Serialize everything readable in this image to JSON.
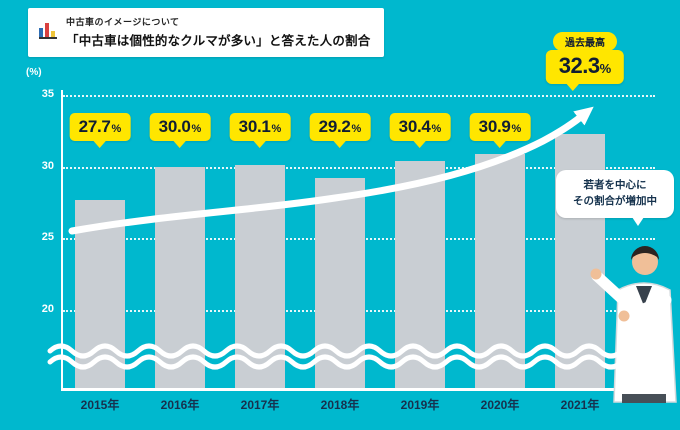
{
  "header": {
    "kicker": "中古車のイメージについて",
    "title": "「中古車は個性的なクルマが多い」と答えた人の割合"
  },
  "chart_data": {
    "type": "bar",
    "title": "「中古車は個性的なクルマが多い」と答えた人の割合",
    "categories": [
      "2015年",
      "2016年",
      "2017年",
      "2018年",
      "2019年",
      "2020年",
      "2021年"
    ],
    "values": [
      27.7,
      30.0,
      30.1,
      29.2,
      30.4,
      30.9,
      32.3
    ],
    "value_labels": [
      "27.7%",
      "30.0%",
      "30.1%",
      "29.2%",
      "30.4%",
      "30.9%",
      "32.3%"
    ],
    "unit_label": "(%)",
    "ylabel": "(%)",
    "xlabel": "",
    "y_ticks": [
      35,
      30,
      25,
      20
    ],
    "ylim_display": [
      20,
      35
    ],
    "axis_break": true,
    "grid": "dotted-white-horizontal",
    "legend": "none",
    "bar_color": "#c9ced3",
    "background_color": "#00b8ce",
    "accent_yellow": "#ffe600",
    "text_navy": "#17314e",
    "annotations": {
      "record_label": "過去最高",
      "record_value": "32.3",
      "record_unit": "%",
      "callout_line1": "若者を中心に",
      "callout_line2": "その割合が増加中",
      "trend_arrow": "white curved arrow rising left-to-right"
    }
  }
}
